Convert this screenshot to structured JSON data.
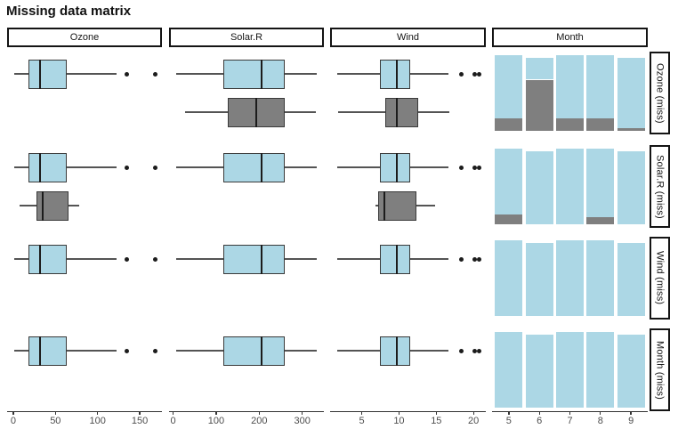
{
  "title": "Missing data matrix",
  "colors": {
    "present_fill": "#ACD7E5",
    "missing_fill": "#7F7F7F",
    "box_border": "#3A3A3A",
    "median_line": "#1C1C1C",
    "whisker": "#545454",
    "axis_line": "#333333",
    "tick_label": "#4D4D4D",
    "strip_border": "#141414",
    "strip_bg": "#FFFFFF"
  },
  "chart_data": {
    "type": "missing-data-matrix",
    "title": "Missing data matrix",
    "legend_position": "none",
    "grid": false,
    "columns": [
      {
        "label": "Ozone",
        "kind": "boxplot",
        "domain": [
          -7.35,
          176.35
        ],
        "ticks": [
          0,
          50,
          100,
          150
        ]
      },
      {
        "label": "Solar.R",
        "kind": "boxplot",
        "domain": [
          -9.35,
          350.35
        ],
        "ticks": [
          0,
          100,
          200,
          300
        ]
      },
      {
        "label": "Wind",
        "kind": "boxplot",
        "domain": [
          0.75,
          21.65
        ],
        "ticks": [
          5,
          10,
          15,
          20
        ]
      },
      {
        "label": "Month",
        "kind": "stacked-bar",
        "domain": [
          4.45,
          9.55
        ],
        "ticks": [
          5,
          6,
          7,
          8,
          9
        ],
        "y_domain": [
          -1.55,
          32.55
        ]
      }
    ],
    "rows": [
      {
        "label": "Ozone (miss)",
        "cells": [
          {
            "present": {
              "lo": 1,
              "q1": 18,
              "med": 31.5,
              "q3": 63.25,
              "hi": 122,
              "outliers": [
                135,
                168
              ]
            },
            "missing": null
          },
          {
            "present": {
              "lo": 7,
              "q1": 115.75,
              "med": 205,
              "q3": 258.75,
              "hi": 334,
              "outliers": []
            },
            "missing": {
              "lo": 28,
              "q1": 128,
              "med": 193,
              "q3": 259,
              "hi": 332,
              "outliers": []
            }
          },
          {
            "present": {
              "lo": 1.7,
              "q1": 7.4,
              "med": 9.7,
              "q3": 11.5,
              "hi": 16.6,
              "outliers": [
                18.4,
                20.1,
                20.7
              ]
            },
            "missing": {
              "lo": 1.8,
              "q1": 8.2,
              "med": 9.7,
              "q3": 12.6,
              "hi": 16.7,
              "outliers": []
            }
          },
          {
            "bars": [
              {
                "x": 5,
                "total": 31,
                "miss": 5
              },
              {
                "x": 6,
                "total": 30,
                "miss": 21
              },
              {
                "x": 7,
                "total": 31,
                "miss": 5
              },
              {
                "x": 8,
                "total": 31,
                "miss": 5
              },
              {
                "x": 9,
                "total": 30,
                "miss": 1
              }
            ]
          }
        ]
      },
      {
        "label": "Solar.R (miss)",
        "cells": [
          {
            "present": {
              "lo": 1,
              "q1": 18,
              "med": 31.5,
              "q3": 63.25,
              "hi": 122,
              "outliers": [
                135,
                168
              ]
            },
            "missing": {
              "lo": 7,
              "q1": 28,
              "med": 35,
              "q3": 66,
              "hi": 78,
              "outliers": []
            }
          },
          {
            "present": {
              "lo": 7,
              "q1": 115.75,
              "med": 205,
              "q3": 258.75,
              "hi": 334,
              "outliers": []
            },
            "missing": null
          },
          {
            "present": {
              "lo": 1.7,
              "q1": 7.4,
              "med": 9.7,
              "q3": 11.5,
              "hi": 16.6,
              "outliers": [
                18.4,
                20.1,
                20.7
              ]
            },
            "missing": {
              "lo": 6.9,
              "q1": 7.15,
              "med": 8.0,
              "q3": 12.3,
              "hi": 14.9,
              "outliers": []
            }
          },
          {
            "bars": [
              {
                "x": 5,
                "total": 31,
                "miss": 4
              },
              {
                "x": 6,
                "total": 30,
                "miss": 0
              },
              {
                "x": 7,
                "total": 31,
                "miss": 0
              },
              {
                "x": 8,
                "total": 31,
                "miss": 3
              },
              {
                "x": 9,
                "total": 30,
                "miss": 0
              }
            ]
          }
        ]
      },
      {
        "label": "Wind (miss)",
        "cells": [
          {
            "present": {
              "lo": 1,
              "q1": 18,
              "med": 31.5,
              "q3": 63.25,
              "hi": 122,
              "outliers": [
                135,
                168
              ]
            },
            "missing": null
          },
          {
            "present": {
              "lo": 7,
              "q1": 115.75,
              "med": 205,
              "q3": 258.75,
              "hi": 334,
              "outliers": []
            },
            "missing": null
          },
          {
            "present": {
              "lo": 1.7,
              "q1": 7.4,
              "med": 9.7,
              "q3": 11.5,
              "hi": 16.6,
              "outliers": [
                18.4,
                20.1,
                20.7
              ]
            },
            "missing": null
          },
          {
            "bars": [
              {
                "x": 5,
                "total": 31,
                "miss": 0
              },
              {
                "x": 6,
                "total": 30,
                "miss": 0
              },
              {
                "x": 7,
                "total": 31,
                "miss": 0
              },
              {
                "x": 8,
                "total": 31,
                "miss": 0
              },
              {
                "x": 9,
                "total": 30,
                "miss": 0
              }
            ]
          }
        ]
      },
      {
        "label": "Month (miss)",
        "cells": [
          {
            "present": {
              "lo": 1,
              "q1": 18,
              "med": 31.5,
              "q3": 63.25,
              "hi": 122,
              "outliers": [
                135,
                168
              ]
            },
            "missing": null
          },
          {
            "present": {
              "lo": 7,
              "q1": 115.75,
              "med": 205,
              "q3": 258.75,
              "hi": 334,
              "outliers": []
            },
            "missing": null
          },
          {
            "present": {
              "lo": 1.7,
              "q1": 7.4,
              "med": 9.7,
              "q3": 11.5,
              "hi": 16.6,
              "outliers": [
                18.4,
                20.1,
                20.7
              ]
            },
            "missing": null
          },
          {
            "bars": [
              {
                "x": 5,
                "total": 31,
                "miss": 0
              },
              {
                "x": 6,
                "total": 30,
                "miss": 0
              },
              {
                "x": 7,
                "total": 31,
                "miss": 0
              },
              {
                "x": 8,
                "total": 31,
                "miss": 0
              },
              {
                "x": 9,
                "total": 30,
                "miss": 0
              }
            ]
          }
        ]
      }
    ]
  }
}
